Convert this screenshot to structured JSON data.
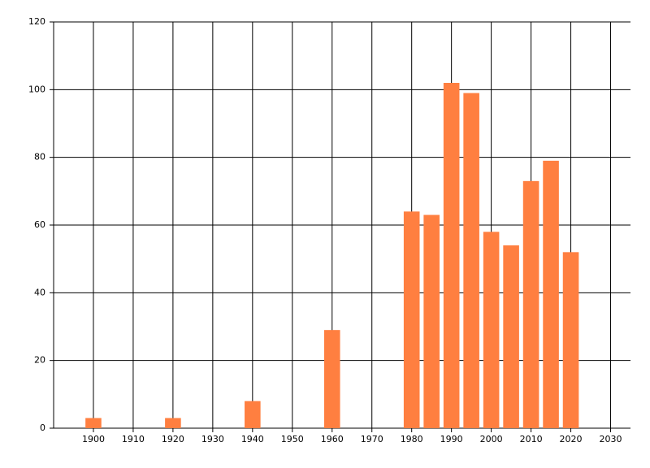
{
  "chart_data": {
    "type": "bar",
    "x": [
      1900,
      1920,
      1940,
      1960,
      1980,
      1985,
      1990,
      1995,
      2000,
      2005,
      2010,
      2015,
      2020
    ],
    "values": [
      3,
      3,
      8,
      29,
      64,
      63,
      102,
      99,
      58,
      54,
      73,
      79,
      52
    ],
    "color": "#ff7f40",
    "xlim": [
      1890,
      2035
    ],
    "xticks": [
      1900,
      1910,
      1920,
      1930,
      1940,
      1950,
      1960,
      1970,
      1980,
      1990,
      2000,
      2010,
      2020,
      2030
    ],
    "ylim": [
      0,
      120
    ],
    "yticks": [
      0,
      20,
      40,
      60,
      80,
      100,
      120
    ],
    "grid": true
  }
}
